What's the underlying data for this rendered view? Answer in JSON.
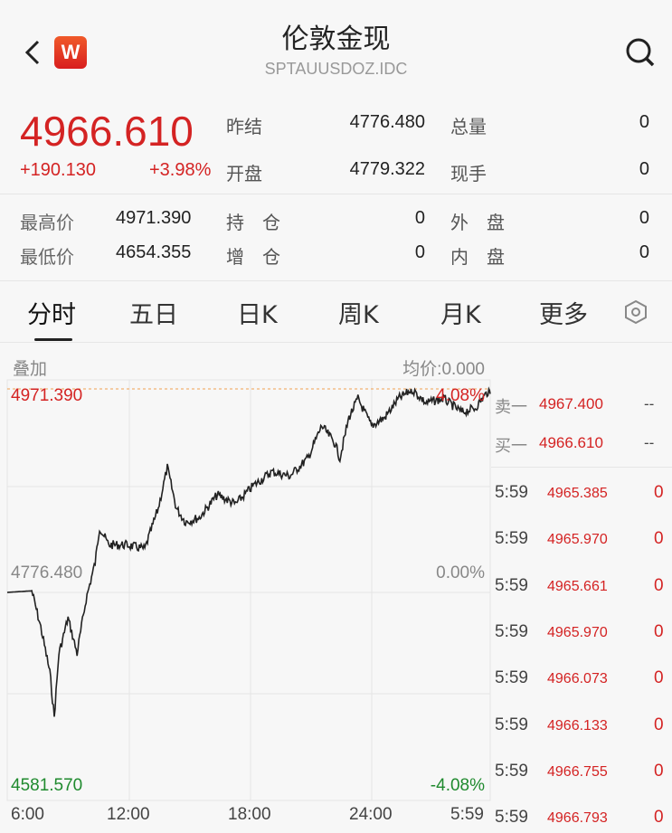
{
  "header": {
    "title": "伦敦金现",
    "code": "SPTAUUSDOZ.IDC",
    "logo": "W"
  },
  "quote": {
    "price": "4966.610",
    "change": "+190.130",
    "change_pct": "+3.98%",
    "prev_close_label": "昨结",
    "prev_close": "4776.480",
    "open_label": "开盘",
    "open": "4779.322",
    "total_vol_label": "总量",
    "total_vol": "0",
    "cur_vol_label": "现手",
    "cur_vol": "0",
    "high_label": "最高价",
    "high": "4971.390",
    "low_label": "最低价",
    "low": "4654.355",
    "oi_label": "持　仓",
    "oi": "0",
    "oi_chg_label": "增　仓",
    "oi_chg": "0",
    "outer_label": "外　盘",
    "outer": "0",
    "inner_label": "内　盘",
    "inner": "0"
  },
  "tabs": [
    {
      "label": "分时",
      "active": true
    },
    {
      "label": "五日"
    },
    {
      "label": "日K"
    },
    {
      "label": "周K"
    },
    {
      "label": "月K"
    },
    {
      "label": "更多"
    }
  ],
  "chart_bar": {
    "overlay": "叠加",
    "avg": "均价:0.000"
  },
  "chart_data": {
    "type": "line",
    "y_labels": {
      "top": "4971.390",
      "mid": "4776.480",
      "bottom": "4581.570",
      "top_pct": "4.08%",
      "mid_pct": "0.00%",
      "bottom_pct": "-4.08%"
    },
    "ylim": [
      4581.57,
      4971.39
    ],
    "prev_close": 4776.48,
    "x_ticks": [
      "6:00",
      "12:00",
      "18:00",
      "24:00",
      "5:59"
    ],
    "x": [
      "06:00",
      "07:13",
      "07:40",
      "08:07",
      "08:20",
      "08:34",
      "09:01",
      "09:28",
      "09:55",
      "10:22",
      "10:35",
      "11:02",
      "11:56",
      "12:50",
      "13:30",
      "13:57",
      "14:24",
      "14:51",
      "15:32",
      "16:26",
      "17:20",
      "18:14",
      "19:08",
      "20:02",
      "20:56",
      "21:37",
      "22:17",
      "22:31",
      "22:58",
      "23:25",
      "00:05",
      "00:45",
      "01:26",
      "02:06",
      "02:47",
      "03:40",
      "04:34",
      "05:14",
      "05:55",
      "05:59"
    ],
    "y": [
      4776.5,
      4778,
      4743,
      4700,
      4657,
      4718,
      4752,
      4718,
      4770,
      4805,
      4839,
      4822,
      4822,
      4818,
      4857,
      4896,
      4857,
      4844,
      4848,
      4870,
      4861,
      4879,
      4892,
      4888,
      4905,
      4936,
      4919,
      4905,
      4944,
      4962,
      4936,
      4944,
      4962,
      4971,
      4958,
      4962,
      4949,
      4953,
      4970,
      4966.61
    ],
    "grid": true
  },
  "orderbook": {
    "ask_label": "卖一",
    "ask": "4967.400",
    "ask_vol": "--",
    "bid_label": "买一",
    "bid": "4966.610",
    "bid_vol": "--"
  },
  "trades": [
    {
      "t": "5:59",
      "p": "4965.385",
      "v": "0"
    },
    {
      "t": "5:59",
      "p": "4965.970",
      "v": "0"
    },
    {
      "t": "5:59",
      "p": "4965.661",
      "v": "0"
    },
    {
      "t": "5:59",
      "p": "4965.970",
      "v": "0"
    },
    {
      "t": "5:59",
      "p": "4966.073",
      "v": "0"
    },
    {
      "t": "5:59",
      "p": "4966.133",
      "v": "0"
    },
    {
      "t": "5:59",
      "p": "4966.755",
      "v": "0"
    },
    {
      "t": "5:59",
      "p": "4966.793",
      "v": "0"
    }
  ]
}
